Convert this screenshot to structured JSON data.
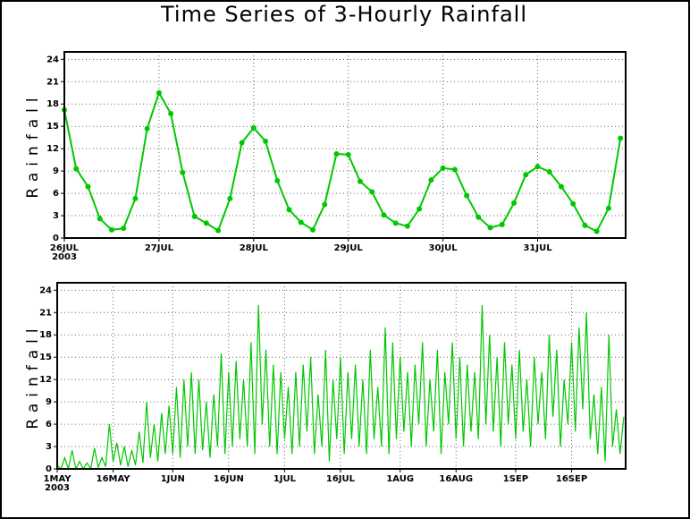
{
  "chart_data": [
    {
      "type": "line",
      "title": "Time Series of 3-Hourly Rainfall",
      "ylabel": "Rainfall",
      "year_label": "2003",
      "x": [
        0,
        0.125,
        0.25,
        0.375,
        0.5,
        0.625,
        0.75,
        0.875,
        1,
        1.125,
        1.25,
        1.375,
        1.5,
        1.625,
        1.75,
        1.875,
        2,
        2.125,
        2.25,
        2.375,
        2.5,
        2.625,
        2.75,
        2.875,
        3,
        3.125,
        3.25,
        3.375,
        3.5,
        3.625,
        3.75,
        3.875,
        4,
        4.125,
        4.25,
        4.375,
        4.5,
        4.625,
        4.75,
        4.875,
        5,
        5.125,
        5.25,
        5.375,
        5.5,
        5.625,
        5.75,
        5.875
      ],
      "series": [
        {
          "color": "#00c800",
          "markers": true,
          "values": [
            17.2,
            9.3,
            6.9,
            2.6,
            1.1,
            1.3,
            5.3,
            14.7,
            19.5,
            16.7,
            8.8,
            2.9,
            2.0,
            1.0,
            5.3,
            12.8,
            14.8,
            13.0,
            7.7,
            3.8,
            2.1,
            1.1,
            4.5,
            11.3,
            11.2,
            7.6,
            6.2,
            3.1,
            2.0,
            1.6,
            3.9,
            7.8,
            9.4,
            9.2,
            5.7,
            2.8,
            1.4,
            1.8,
            4.7,
            8.5,
            9.6,
            8.9,
            6.9,
            4.6,
            1.7,
            0.9,
            4.0,
            13.4
          ]
        }
      ],
      "xlim": [
        0,
        5.93
      ],
      "xticks": [
        {
          "value": 0,
          "label": "26JUL"
        },
        {
          "value": 1,
          "label": "27JUL"
        },
        {
          "value": 2,
          "label": "28JUL"
        },
        {
          "value": 3,
          "label": "29JUL"
        },
        {
          "value": 4,
          "label": "30JUL"
        },
        {
          "value": 5,
          "label": "31JUL"
        }
      ],
      "ylim": [
        0,
        25
      ],
      "yticks": [
        0,
        3,
        6,
        9,
        12,
        15,
        18,
        21,
        24
      ],
      "grid": true
    },
    {
      "type": "line",
      "ylabel": "Rainfall",
      "year_label": "2003",
      "x": [
        0,
        1,
        2,
        3,
        4,
        5,
        6,
        7,
        8,
        9,
        10,
        11,
        12,
        13,
        14,
        15,
        16,
        17,
        18,
        19,
        20,
        21,
        22,
        23,
        24,
        25,
        26,
        27,
        28,
        29,
        30,
        31,
        32,
        33,
        34,
        35,
        36,
        37,
        38,
        39,
        40,
        41,
        42,
        43,
        44,
        45,
        46,
        47,
        48,
        49,
        50,
        51,
        52,
        53,
        54,
        55,
        56,
        57,
        58,
        59,
        60,
        61,
        62,
        63,
        64,
        65,
        66,
        67,
        68,
        69,
        70,
        71,
        72,
        73,
        74,
        75,
        76,
        77,
        78,
        79,
        80,
        81,
        82,
        83,
        84,
        85,
        86,
        87,
        88,
        89,
        90,
        91,
        92,
        93,
        94,
        95,
        96,
        97,
        98,
        99,
        100,
        101,
        102,
        103,
        104,
        105,
        106,
        107,
        108,
        109,
        110,
        111,
        112,
        113,
        114,
        115,
        116,
        117,
        118,
        119,
        120,
        121,
        122,
        123,
        124,
        125,
        126,
        127,
        128,
        129,
        130,
        131,
        132,
        133,
        134,
        135,
        136,
        137,
        138,
        139,
        140,
        141,
        142,
        143,
        144,
        145,
        146,
        147,
        148,
        149,
        150,
        151,
        152
      ],
      "series": [
        {
          "color": "#00c800",
          "markers": false,
          "values": [
            0.5,
            0,
            1.5,
            0,
            2.5,
            0,
            1,
            0,
            0.8,
            0,
            2.8,
            0.2,
            1.5,
            0.3,
            6,
            1,
            3.5,
            0.5,
            3,
            0.3,
            2.5,
            0.5,
            5,
            0.8,
            9,
            1.5,
            6,
            1,
            7.5,
            2,
            8.5,
            2,
            11,
            1.5,
            12,
            3,
            13,
            2,
            12,
            2.5,
            9,
            1.5,
            10,
            3,
            15.5,
            2,
            13,
            3,
            14.5,
            4,
            12,
            3,
            17,
            2,
            22,
            6,
            16,
            3,
            14,
            2,
            13,
            4,
            11,
            2,
            13,
            3,
            14,
            5,
            15,
            2,
            10,
            3,
            16,
            1,
            12,
            4,
            15,
            2,
            13,
            4,
            14,
            3,
            12,
            2,
            16,
            4,
            11,
            3,
            19,
            2,
            17,
            4,
            15,
            5,
            13,
            3,
            14,
            6,
            17,
            3,
            12,
            5,
            16,
            2,
            13,
            6,
            17,
            4,
            15,
            3,
            14,
            5,
            13,
            4,
            22,
            6,
            18,
            5,
            15,
            3,
            17,
            6,
            14,
            4,
            16,
            5,
            12,
            3,
            15,
            6,
            13,
            4,
            18,
            7,
            16,
            3,
            12,
            6,
            17,
            5,
            19,
            8,
            21,
            4,
            10,
            2,
            11,
            1,
            18,
            3,
            8,
            2,
            7
          ]
        }
      ],
      "xlim": [
        0,
        152.5
      ],
      "xticks": [
        {
          "value": 0,
          "label": "1MAY"
        },
        {
          "value": 15,
          "label": "16MAY"
        },
        {
          "value": 31,
          "label": "1JUN"
        },
        {
          "value": 46,
          "label": "16JUN"
        },
        {
          "value": 61,
          "label": "1JUL"
        },
        {
          "value": 76,
          "label": "16JUL"
        },
        {
          "value": 92,
          "label": "1AUG"
        },
        {
          "value": 107,
          "label": "16AUG"
        },
        {
          "value": 123,
          "label": "1SEP"
        },
        {
          "value": 138,
          "label": "16SEP"
        }
      ],
      "ylim": [
        0,
        25
      ],
      "yticks": [
        0,
        3,
        6,
        9,
        12,
        15,
        18,
        21,
        24
      ],
      "grid": true
    }
  ]
}
